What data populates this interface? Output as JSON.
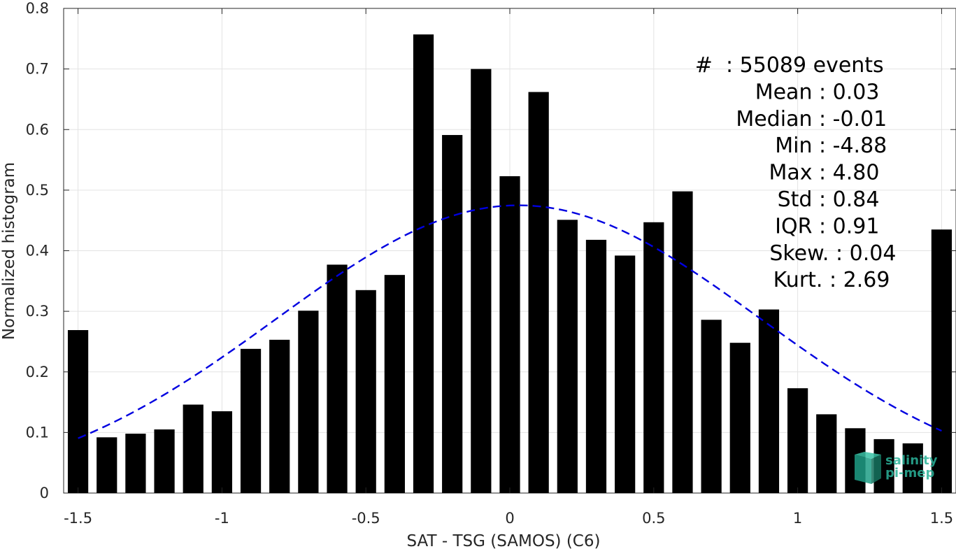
{
  "chart_data": {
    "type": "bar",
    "title": "",
    "xlabel": "SAT - TSG (SAMOS) (C6)",
    "ylabel": "Normalized histogram",
    "xlim": [
      -1.55,
      1.55
    ],
    "ylim": [
      0,
      0.8
    ],
    "xticks": [
      -1.5,
      -1,
      -0.5,
      0,
      0.5,
      1,
      1.5
    ],
    "xtick_labels": [
      "-1.5",
      "-1",
      "-0.5",
      "0",
      "0.5",
      "1",
      "1.5"
    ],
    "yticks": [
      0,
      0.1,
      0.2,
      0.3,
      0.4,
      0.5,
      0.6,
      0.7,
      0.8
    ],
    "ytick_labels": [
      "0",
      "0.1",
      "0.2",
      "0.3",
      "0.4",
      "0.5",
      "0.6",
      "0.7",
      "0.8"
    ],
    "grid": true,
    "bar_color": "#000000",
    "curve_color": "#0000e0",
    "x": [
      -1.5,
      -1.4,
      -1.3,
      -1.2,
      -1.1,
      -1.0,
      -0.9,
      -0.8,
      -0.7,
      -0.6,
      -0.5,
      -0.4,
      -0.3,
      -0.2,
      -0.1,
      0.0,
      0.1,
      0.2,
      0.3,
      0.4,
      0.5,
      0.6,
      0.7,
      0.8,
      0.9,
      1.0,
      1.1,
      1.2,
      1.3,
      1.4,
      1.5
    ],
    "values": [
      0.269,
      0.092,
      0.098,
      0.105,
      0.146,
      0.135,
      0.238,
      0.253,
      0.301,
      0.377,
      0.335,
      0.36,
      0.757,
      0.591,
      0.7,
      0.523,
      0.662,
      0.451,
      0.418,
      0.392,
      0.447,
      0.498,
      0.286,
      0.248,
      0.303,
      0.173,
      0.13,
      0.107,
      0.089,
      0.082,
      0.435
    ],
    "fit_curve": {
      "type": "normal",
      "mean": 0.03,
      "std": 0.84,
      "x_range": [
        -1.5,
        1.5
      ],
      "style": "dashed"
    },
    "stats": [
      {
        "label": "#  ",
        "value": ": 55089 events"
      },
      {
        "label": "Mean ",
        "value": ": 0.03"
      },
      {
        "label": "Median ",
        "value": ": -0.01"
      },
      {
        "label": "Min ",
        "value": ": -4.88"
      },
      {
        "label": "Max ",
        "value": ": 4.80"
      },
      {
        "label": "Std ",
        "value": ": 0.84"
      },
      {
        "label": "IQR ",
        "value": ": 0.91"
      },
      {
        "label": "Skew. ",
        "value": ": 0.04"
      },
      {
        "label": "Kurt. ",
        "value": ": 2.69"
      }
    ]
  },
  "logo": {
    "line1": "salinity",
    "line2": "pi-mep"
  }
}
